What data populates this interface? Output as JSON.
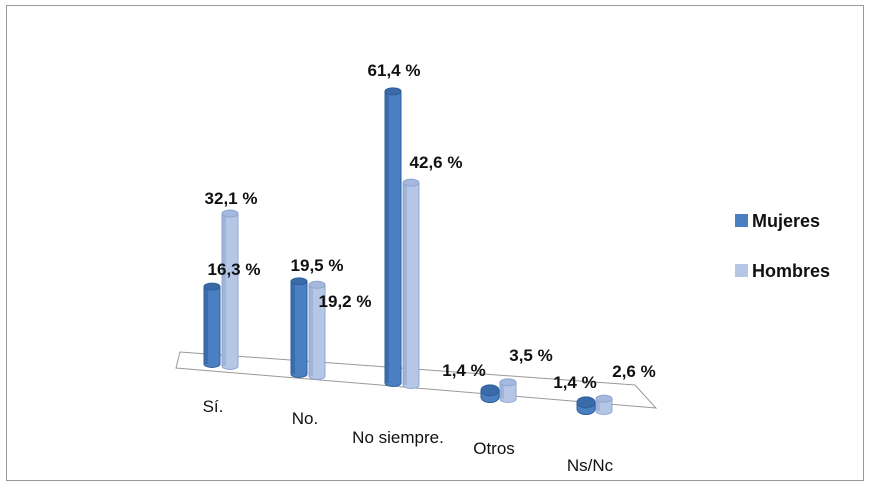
{
  "colors": {
    "mujeres_side": "#2f5f9a",
    "mujeres_front": "#4a7fc1",
    "mujeres_top": "#3a6aa8",
    "hombres_side": "#8ea5d0",
    "hombres_front": "#b6c6e6",
    "hombres_top": "#a5b8e0",
    "floor": "#ffffff",
    "floor_stroke": "#9a9a9a"
  },
  "chart_data": {
    "type": "bar",
    "title": "",
    "xlabel": "",
    "ylabel": "",
    "categories": [
      "Sí.",
      "No.",
      "No siempre.",
      "Otros",
      "Ns/Nc"
    ],
    "series": [
      {
        "name": "Mujeres",
        "values": [
          16.3,
          19.5,
          61.4,
          1.4,
          1.4
        ],
        "labels": [
          "16,3  %",
          "19,5 %",
          "61,4 %",
          "1,4 %",
          "1,4 %"
        ]
      },
      {
        "name": "Hombres",
        "values": [
          32.1,
          19.2,
          42.6,
          3.5,
          2.6
        ],
        "labels": [
          "32,1 %",
          "19,2 %",
          "42,6 %",
          "3,5 %",
          "2,6 %"
        ]
      }
    ],
    "ylim": [
      0,
      70
    ],
    "grid": false,
    "legend_position": "right",
    "style": "3d-cylinder"
  }
}
